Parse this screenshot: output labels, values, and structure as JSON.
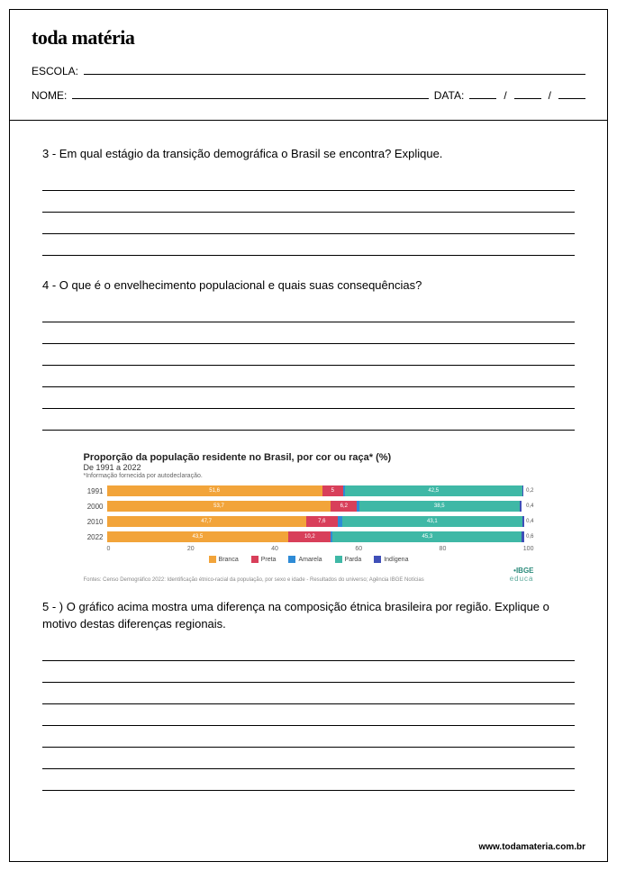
{
  "logo": "toda matéria",
  "header": {
    "escola_label": "ESCOLA:",
    "nome_label": "NOME:",
    "data_label": "DATA:"
  },
  "q3": {
    "text": "3 - Em qual estágio da transição demográfica o Brasil se encontra? Explique.",
    "lines": 4
  },
  "q4": {
    "text": "4 - O que é o envelhecimento populacional e quais suas consequências?",
    "lines": 6
  },
  "chart": {
    "title": "Proporção da população residente no Brasil, por cor ou raça* (%)",
    "subtitle": "De 1991 a 2022",
    "note": "*Informação fornecida por autodeclaração.",
    "years": [
      "1991",
      "2000",
      "2010",
      "2022"
    ],
    "series": [
      {
        "name": "Branca",
        "color": "#f2a43a",
        "values": [
          51.6,
          53.7,
          47.7,
          43.5
        ]
      },
      {
        "name": "Preta",
        "color": "#d83f5a",
        "values": [
          5.0,
          6.2,
          7.6,
          10.2
        ]
      },
      {
        "name": "Amarela",
        "color": "#2e8bd6",
        "values": [
          0.4,
          0.5,
          1.1,
          0.4
        ]
      },
      {
        "name": "Parda",
        "color": "#3fb8a6",
        "values": [
          42.5,
          38.5,
          43.1,
          45.3
        ]
      },
      {
        "name": "Indígena",
        "color": "#3f4fb8",
        "values": [
          0.2,
          0.4,
          0.4,
          0.6
        ]
      }
    ],
    "end_labels": [
      "0,2",
      "0,4",
      "0,4",
      "0,6"
    ],
    "axis": [
      "0",
      "20",
      "40",
      "60",
      "80",
      "100"
    ],
    "source": "Fontes: Censo Demográfico 2022: Identificação étnico-racial da população, por sexo e idade - Resultados do universo; Agência IBGE Notícias",
    "ibge1": "•IBGE",
    "ibge2": "educa"
  },
  "q5": {
    "text": "5 - ) O gráfico acima mostra uma diferença na composição étnica brasileira por região. Explique o motivo destas diferenças regionais.",
    "lines": 7
  },
  "footer_url": "www.todamateria.com.br"
}
